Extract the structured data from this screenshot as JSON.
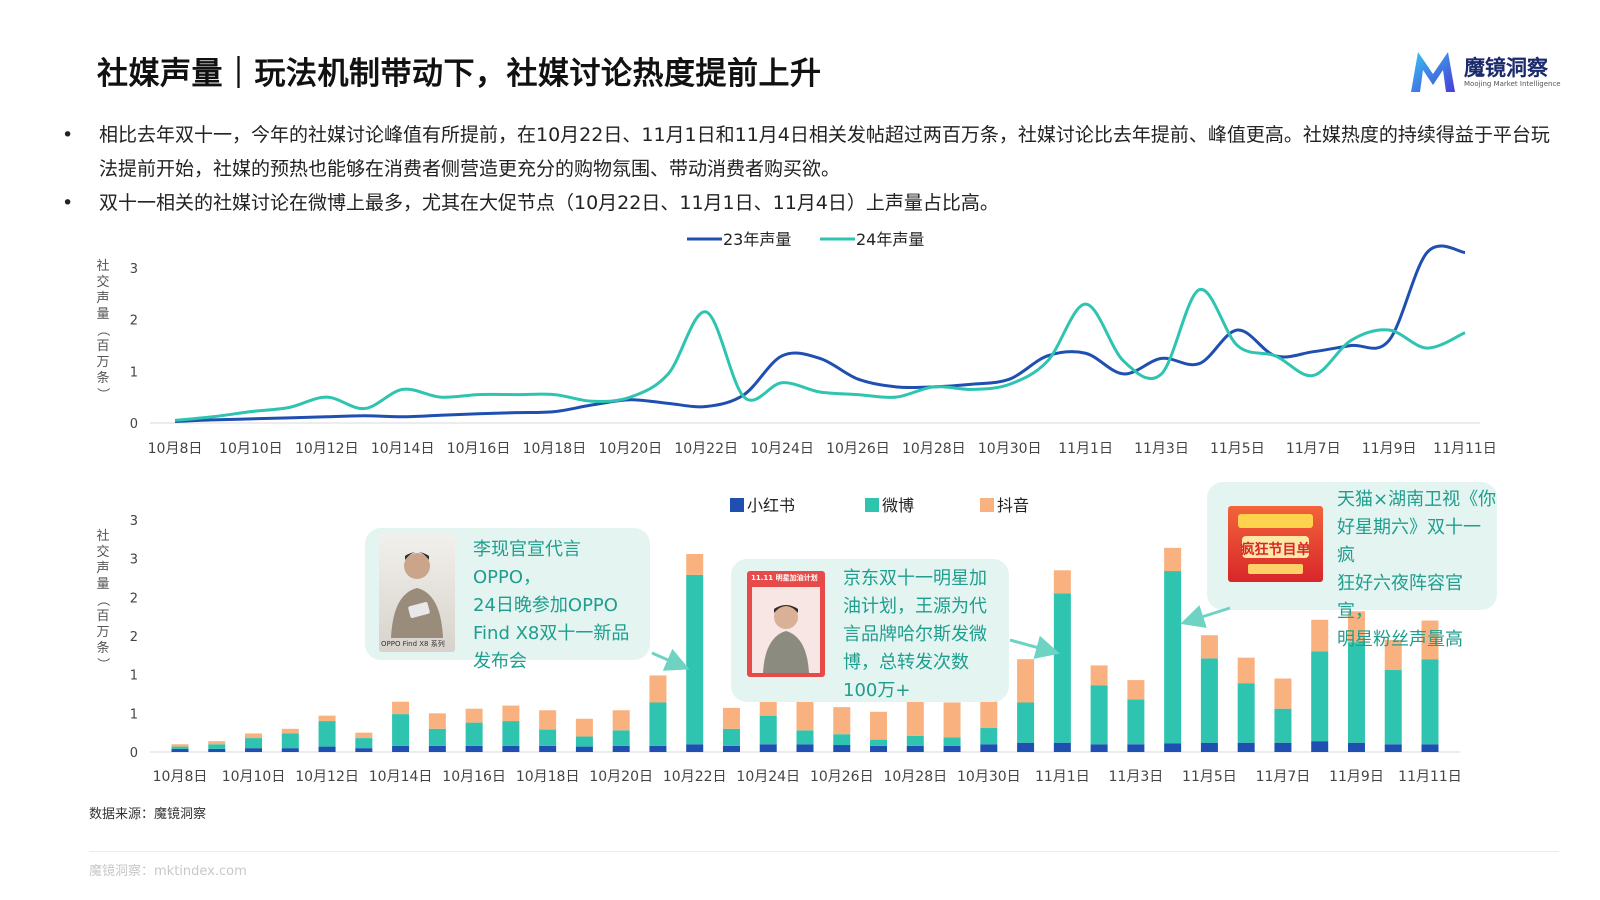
{
  "header": {
    "title": "社媒声量｜玩法机制带动下，社媒讨论热度提前上升",
    "logo_text": "魔镜洞察",
    "logo_sub": "Moojing Market Intelligence"
  },
  "bullets": [
    "相比去年双十一，今年的社媒讨论峰值有所提前，在10月22日、11月1日和11月4日相关发帖超过两百万条，社媒讨论比去年提前、峰值更高。社媒热度的持续得益于平台玩法提前开始，社媒的预热也能够在消费者侧营造更充分的购物氛围、带动消费者购买欲。",
    "双十一相关的社媒讨论在微博上最多，尤其在大促节点（10月22日、11月1日、11月4日）上声量占比高。"
  ],
  "bullet_symbol": "•",
  "colors": {
    "line23": "#1f4fb0",
    "line24": "#2ec4b0",
    "xhs": "#1f4fb0",
    "weibo": "#2ec4b0",
    "douyin": "#f9b27f",
    "callout_bg": "#e4f4f1",
    "callout_text": "#1f9e8e"
  },
  "chart_data": [
    {
      "type": "line",
      "ylabel": "社交声量（百万条）",
      "yticks": [
        "0",
        "1",
        "2",
        "3"
      ],
      "ylim": [
        0,
        3.4
      ],
      "x": [
        "10月8日",
        "10月9日",
        "10月10日",
        "10月11日",
        "10月12日",
        "10月13日",
        "10月14日",
        "10月15日",
        "10月16日",
        "10月17日",
        "10月18日",
        "10月19日",
        "10月20日",
        "10月21日",
        "10月22日",
        "10月23日",
        "10月24日",
        "10月25日",
        "10月26日",
        "10月27日",
        "10月28日",
        "10月29日",
        "10月30日",
        "10月31日",
        "11月1日",
        "11月2日",
        "11月3日",
        "11月4日",
        "11月5日",
        "11月6日",
        "11月7日",
        "11月8日",
        "11月9日",
        "11月10日",
        "11月11日"
      ],
      "xtick_labels": [
        "10月8日",
        "10月10日",
        "10月12日",
        "10月14日",
        "10月16日",
        "10月18日",
        "10月20日",
        "10月22日",
        "10月24日",
        "10月26日",
        "10月28日",
        "10月30日",
        "11月1日",
        "11月3日",
        "11月5日",
        "11月7日",
        "11月9日",
        "11月11日"
      ],
      "series": [
        {
          "name": "23年声量",
          "values": [
            0.03,
            0.06,
            0.08,
            0.1,
            0.12,
            0.14,
            0.12,
            0.15,
            0.18,
            0.2,
            0.22,
            0.35,
            0.45,
            0.38,
            0.32,
            0.55,
            1.3,
            1.25,
            0.85,
            0.7,
            0.7,
            0.75,
            0.85,
            1.3,
            1.35,
            0.95,
            1.25,
            1.15,
            1.8,
            1.3,
            1.38,
            1.5,
            1.6,
            3.3,
            3.3
          ]
        },
        {
          "name": "24年声量",
          "values": [
            0.05,
            0.12,
            0.22,
            0.3,
            0.5,
            0.28,
            0.65,
            0.5,
            0.55,
            0.55,
            0.55,
            0.42,
            0.5,
            0.95,
            2.15,
            0.5,
            0.78,
            0.6,
            0.55,
            0.5,
            0.7,
            0.65,
            0.75,
            1.2,
            2.3,
            1.2,
            0.95,
            2.58,
            1.5,
            1.3,
            0.92,
            1.6,
            1.8,
            1.45,
            1.75
          ]
        }
      ],
      "legend": "top"
    },
    {
      "type": "bar",
      "stacked": true,
      "ylabel": "社交声量（百万条）",
      "yticks": [
        "0",
        "1",
        "1",
        "2",
        "2",
        "3",
        "3"
      ],
      "ylim": [
        0,
        3
      ],
      "categories": [
        "10月8日",
        "10月9日",
        "10月10日",
        "10月11日",
        "10月12日",
        "10月13日",
        "10月14日",
        "10月15日",
        "10月16日",
        "10月17日",
        "10月18日",
        "10月19日",
        "10月20日",
        "10月21日",
        "10月22日",
        "10月23日",
        "10月24日",
        "10月25日",
        "10月26日",
        "10月27日",
        "10月28日",
        "10月29日",
        "10月30日",
        "10月31日",
        "11月1日",
        "11月2日",
        "11月3日",
        "11月4日",
        "11月5日",
        "11月6日",
        "11月7日",
        "11月8日",
        "11月9日",
        "11月10日",
        "11月11日"
      ],
      "xtick_labels": [
        "10月8日",
        "10月10日",
        "10月12日",
        "10月14日",
        "10月16日",
        "10月18日",
        "10月20日",
        "10月22日",
        "10月24日",
        "10月26日",
        "10月28日",
        "10月30日",
        "11月1日",
        "11月3日",
        "11月5日",
        "11月7日",
        "11月9日",
        "11月11日"
      ],
      "series": [
        {
          "name": "小红书",
          "values": [
            0.04,
            0.04,
            0.05,
            0.05,
            0.07,
            0.05,
            0.08,
            0.08,
            0.08,
            0.08,
            0.08,
            0.07,
            0.08,
            0.08,
            0.1,
            0.08,
            0.1,
            0.1,
            0.09,
            0.08,
            0.08,
            0.08,
            0.1,
            0.12,
            0.12,
            0.1,
            0.1,
            0.11,
            0.12,
            0.12,
            0.12,
            0.14,
            0.12,
            0.1,
            0.1
          ]
        },
        {
          "name": "微博",
          "values": [
            0.03,
            0.06,
            0.13,
            0.19,
            0.33,
            0.13,
            0.41,
            0.22,
            0.3,
            0.32,
            0.21,
            0.13,
            0.2,
            0.56,
            2.19,
            0.22,
            0.37,
            0.18,
            0.14,
            0.08,
            0.13,
            0.11,
            0.21,
            0.52,
            1.93,
            0.76,
            0.58,
            2.23,
            1.09,
            0.77,
            0.44,
            1.16,
            1.3,
            0.96,
            1.1
          ]
        },
        {
          "name": "抖音",
          "values": [
            0.03,
            0.04,
            0.06,
            0.06,
            0.07,
            0.07,
            0.16,
            0.2,
            0.18,
            0.2,
            0.25,
            0.23,
            0.26,
            0.35,
            0.27,
            0.27,
            0.33,
            0.38,
            0.35,
            0.36,
            0.52,
            0.45,
            0.45,
            0.56,
            0.3,
            0.26,
            0.25,
            0.3,
            0.3,
            0.33,
            0.39,
            0.41,
            0.4,
            0.39,
            0.5
          ]
        }
      ],
      "legend": "top",
      "annotations": [
        {
          "target": "10月22日",
          "text": "李现官宣代言OPPO，24日晚参加OPPO Find X8双十一新品发布会",
          "lines": [
            "李现官宣代言OPPO，",
            "24日晚参加OPPO",
            "Find X8双十一新品",
            "发布会"
          ],
          "image_caption": "OPPO Find X8 系列"
        },
        {
          "target": "11月1日",
          "text": "京东双十一明星加油计划，王源为代言品牌哈尔斯发微博，总转发次数100万+",
          "lines": [
            "京东双十一明星加",
            "油计划，王源为代",
            "言品牌哈尔斯发微",
            "博，总转发次数",
            "100万+"
          ],
          "image_caption": "11.11 明星加油计划"
        },
        {
          "target": "11月4日",
          "text": "天猫×湖南卫视《你好星期六》双十一疯狂好六夜阵容官宣，明星粉丝声量高",
          "lines": [
            "天猫×湖南卫视《你",
            "好星期六》双十一疯",
            "狂好六夜阵容官宣，",
            "明星粉丝声量高"
          ],
          "image_caption": "疯狂节目单"
        }
      ]
    }
  ],
  "source": "数据来源：魔镜洞察",
  "footer": "魔镜洞察：mktindex.com"
}
